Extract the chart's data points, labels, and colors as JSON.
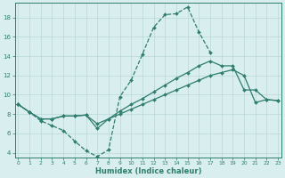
{
  "xlabel": "Humidex (Indice chaleur)",
  "x_values": [
    0,
    1,
    2,
    3,
    4,
    5,
    6,
    7,
    8,
    9,
    10,
    11,
    12,
    13,
    14,
    15,
    16,
    17,
    18,
    19,
    20,
    21,
    22,
    23
  ],
  "line_zigzag_y": [
    9.0,
    8.2,
    7.3,
    6.8,
    6.3,
    5.2,
    4.2,
    3.6,
    4.3,
    9.8,
    11.5,
    14.2,
    17.0,
    18.3,
    18.4,
    19.1,
    16.5,
    14.4,
    null,
    null,
    null,
    null,
    null,
    null
  ],
  "line_upper_y": [
    9.0,
    8.2,
    7.5,
    7.5,
    7.8,
    7.8,
    7.9,
    6.5,
    7.5,
    8.3,
    9.0,
    9.6,
    10.3,
    11.0,
    11.7,
    12.3,
    13.0,
    13.5,
    13.0,
    13.0,
    10.5,
    10.5,
    9.5,
    9.4
  ],
  "line_lower_y": [
    9.0,
    8.2,
    7.5,
    7.5,
    7.8,
    7.8,
    7.9,
    7.0,
    7.5,
    8.0,
    8.5,
    9.0,
    9.5,
    10.0,
    10.5,
    11.0,
    11.5,
    12.0,
    12.3,
    12.6,
    12.0,
    9.2,
    9.5,
    9.4
  ],
  "line_color": "#2e7d6e",
  "bg_color": "#d9eeee",
  "grid_color": "#b8d8d8",
  "ylim": [
    3.5,
    19.5
  ],
  "xlim": [
    -0.3,
    23.3
  ],
  "yticks": [
    4,
    6,
    8,
    10,
    12,
    14,
    16,
    18
  ],
  "xticks": [
    0,
    1,
    2,
    3,
    4,
    5,
    6,
    7,
    8,
    9,
    10,
    11,
    12,
    13,
    14,
    15,
    16,
    17,
    18,
    19,
    20,
    21,
    22,
    23
  ]
}
